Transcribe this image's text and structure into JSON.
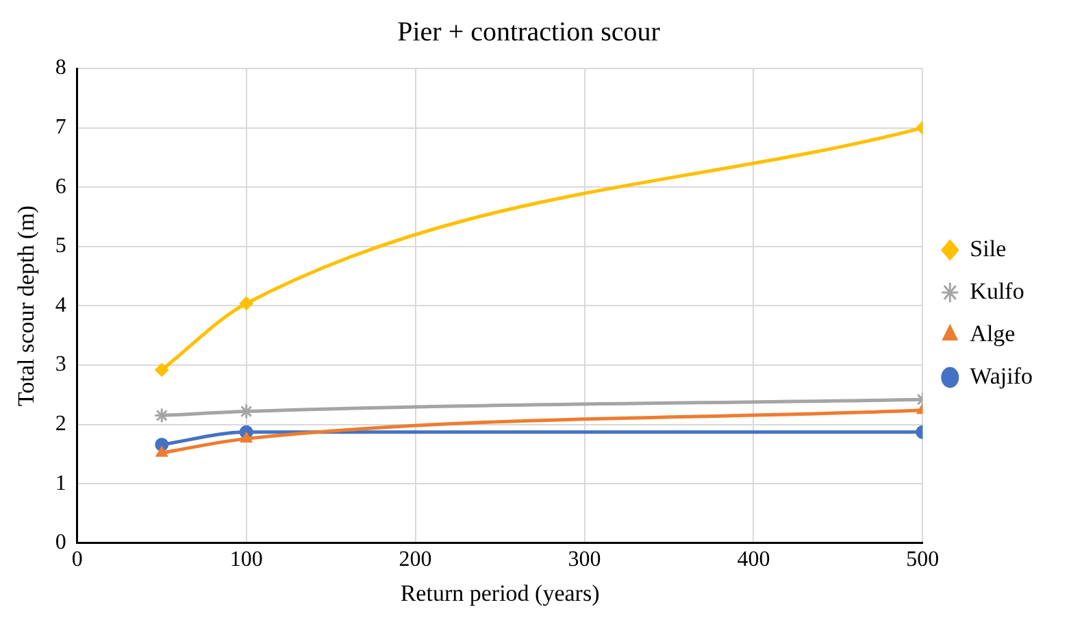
{
  "chart_data": {
    "type": "line",
    "title": "Pier + contraction scour",
    "xlabel": "Return period (years)",
    "ylabel": "Total scour depth (m)",
    "x": [
      50,
      100,
      500
    ],
    "series": [
      {
        "name": "Sile",
        "color": "#ffc000",
        "marker": "diamond",
        "values": [
          2.92,
          4.04,
          7.0
        ]
      },
      {
        "name": "Kulfo",
        "color": "#a5a5a5",
        "marker": "cross",
        "values": [
          2.15,
          2.22,
          2.42
        ]
      },
      {
        "name": "Alge",
        "color": "#ed7d31",
        "marker": "triangle",
        "values": [
          1.52,
          1.76,
          2.24
        ]
      },
      {
        "name": "Wajifo",
        "color": "#4472c4",
        "marker": "circle",
        "values": [
          1.66,
          1.87,
          1.87
        ]
      }
    ],
    "xlim": [
      0,
      500
    ],
    "xticks": [
      0,
      100,
      200,
      300,
      400,
      500
    ],
    "ylim": [
      0,
      8
    ],
    "yticks": [
      0,
      1,
      2,
      3,
      4,
      5,
      6,
      7,
      8
    ],
    "grid": true,
    "legend": "right",
    "line_style": "solid"
  }
}
